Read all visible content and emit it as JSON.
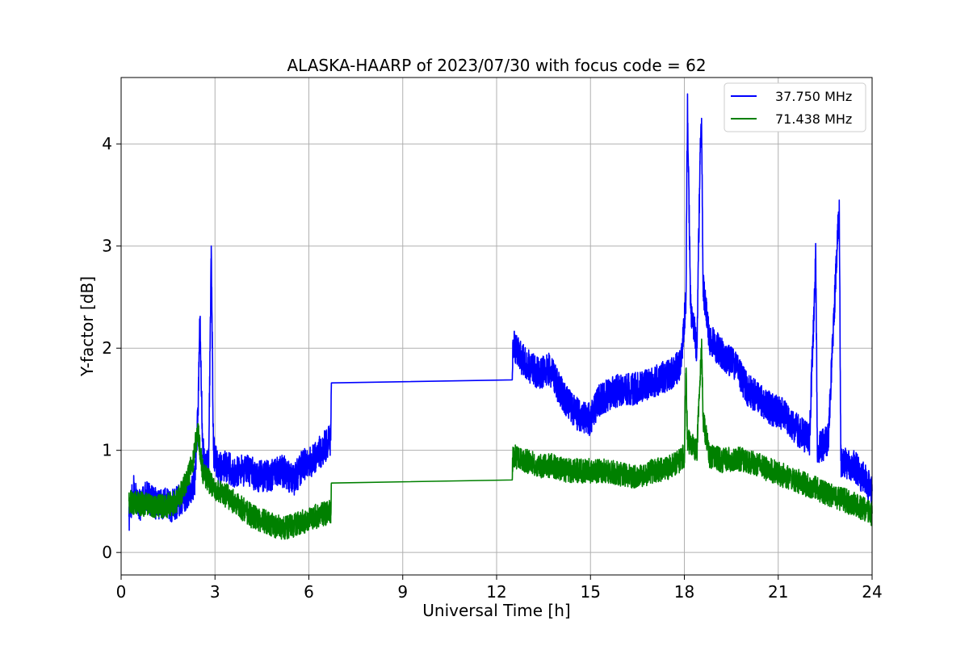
{
  "chart_data": {
    "type": "line",
    "title": "ALASKA-HAARP of 2023/07/30 with focus code = 62",
    "xlabel": "Universal Time [h]",
    "ylabel": "Y-factor [dB]",
    "xlim": [
      0,
      24
    ],
    "ylim": [
      -0.22,
      4.65
    ],
    "xticks": [
      0,
      3,
      6,
      9,
      12,
      15,
      18,
      21,
      24
    ],
    "yticks": [
      0,
      1,
      2,
      3,
      4
    ],
    "grid": true,
    "legend_position": "top-right",
    "series": [
      {
        "name": "37.750 MHz",
        "color": "#0000ff",
        "points": [
          [
            0.25,
            0.35
          ],
          [
            0.4,
            0.6
          ],
          [
            0.6,
            0.45
          ],
          [
            0.8,
            0.55
          ],
          [
            1.0,
            0.5
          ],
          [
            1.2,
            0.45
          ],
          [
            1.4,
            0.5
          ],
          [
            1.6,
            0.45
          ],
          [
            1.8,
            0.5
          ],
          [
            2.0,
            0.55
          ],
          [
            2.2,
            0.6
          ],
          [
            2.35,
            0.7
          ],
          [
            2.45,
            1.3
          ],
          [
            2.52,
            2.3
          ],
          [
            2.6,
            1.1
          ],
          [
            2.7,
            0.8
          ],
          [
            2.8,
            0.9
          ],
          [
            2.88,
            3.0
          ],
          [
            2.95,
            1.0
          ],
          [
            3.1,
            0.8
          ],
          [
            3.3,
            0.85
          ],
          [
            3.6,
            0.8
          ],
          [
            4.0,
            0.8
          ],
          [
            4.4,
            0.75
          ],
          [
            4.8,
            0.75
          ],
          [
            5.2,
            0.8
          ],
          [
            5.5,
            0.7
          ],
          [
            5.8,
            0.85
          ],
          [
            6.1,
            0.9
          ],
          [
            6.4,
            1.0
          ],
          [
            6.7,
            1.1
          ],
          [
            6.72,
            1.66
          ],
          [
            12.5,
            1.69
          ],
          [
            12.52,
            2.05
          ],
          [
            12.8,
            1.9
          ],
          [
            13.1,
            1.8
          ],
          [
            13.4,
            1.75
          ],
          [
            13.7,
            1.8
          ],
          [
            14.0,
            1.6
          ],
          [
            14.3,
            1.45
          ],
          [
            14.6,
            1.35
          ],
          [
            15.0,
            1.3
          ],
          [
            15.3,
            1.5
          ],
          [
            15.6,
            1.55
          ],
          [
            16.0,
            1.6
          ],
          [
            16.4,
            1.6
          ],
          [
            16.8,
            1.65
          ],
          [
            17.2,
            1.7
          ],
          [
            17.6,
            1.75
          ],
          [
            17.9,
            1.85
          ],
          [
            18.05,
            2.5
          ],
          [
            18.1,
            4.4
          ],
          [
            18.2,
            2.4
          ],
          [
            18.4,
            2.0
          ],
          [
            18.5,
            3.8
          ],
          [
            18.55,
            4.25
          ],
          [
            18.6,
            2.6
          ],
          [
            18.8,
            2.1
          ],
          [
            19.2,
            1.95
          ],
          [
            19.6,
            1.85
          ],
          [
            20.0,
            1.6
          ],
          [
            20.4,
            1.5
          ],
          [
            20.8,
            1.4
          ],
          [
            21.2,
            1.35
          ],
          [
            21.6,
            1.2
          ],
          [
            22.0,
            1.1
          ],
          [
            22.2,
            2.9
          ],
          [
            22.25,
            1.0
          ],
          [
            22.6,
            1.1
          ],
          [
            22.95,
            3.45
          ],
          [
            23.0,
            0.9
          ],
          [
            23.4,
            0.85
          ],
          [
            23.8,
            0.7
          ],
          [
            24.0,
            0.6
          ]
        ]
      },
      {
        "name": "71.438 MHz",
        "color": "#008000",
        "points": [
          [
            0.25,
            0.5
          ],
          [
            0.6,
            0.48
          ],
          [
            1.0,
            0.45
          ],
          [
            1.4,
            0.45
          ],
          [
            1.8,
            0.5
          ],
          [
            2.1,
            0.7
          ],
          [
            2.3,
            0.9
          ],
          [
            2.45,
            1.2
          ],
          [
            2.6,
            0.8
          ],
          [
            3.0,
            0.6
          ],
          [
            3.4,
            0.55
          ],
          [
            3.8,
            0.45
          ],
          [
            4.2,
            0.35
          ],
          [
            4.6,
            0.3
          ],
          [
            5.0,
            0.25
          ],
          [
            5.4,
            0.25
          ],
          [
            5.8,
            0.3
          ],
          [
            6.2,
            0.35
          ],
          [
            6.7,
            0.4
          ],
          [
            6.72,
            0.68
          ],
          [
            12.5,
            0.71
          ],
          [
            12.52,
            0.95
          ],
          [
            12.9,
            0.9
          ],
          [
            13.4,
            0.85
          ],
          [
            13.8,
            0.85
          ],
          [
            14.2,
            0.8
          ],
          [
            14.6,
            0.8
          ],
          [
            15.0,
            0.8
          ],
          [
            15.4,
            0.8
          ],
          [
            15.8,
            0.78
          ],
          [
            16.2,
            0.75
          ],
          [
            16.6,
            0.75
          ],
          [
            17.0,
            0.8
          ],
          [
            17.4,
            0.82
          ],
          [
            17.8,
            0.88
          ],
          [
            18.0,
            0.95
          ],
          [
            18.05,
            1.8
          ],
          [
            18.1,
            1.1
          ],
          [
            18.4,
            1.0
          ],
          [
            18.55,
            2.0
          ],
          [
            18.6,
            1.3
          ],
          [
            18.8,
            0.95
          ],
          [
            19.2,
            0.9
          ],
          [
            19.6,
            0.92
          ],
          [
            20.0,
            0.9
          ],
          [
            20.4,
            0.85
          ],
          [
            20.8,
            0.8
          ],
          [
            21.2,
            0.75
          ],
          [
            21.6,
            0.7
          ],
          [
            22.0,
            0.65
          ],
          [
            22.4,
            0.6
          ],
          [
            22.8,
            0.55
          ],
          [
            23.2,
            0.5
          ],
          [
            23.6,
            0.45
          ],
          [
            24.0,
            0.38
          ]
        ]
      }
    ]
  }
}
